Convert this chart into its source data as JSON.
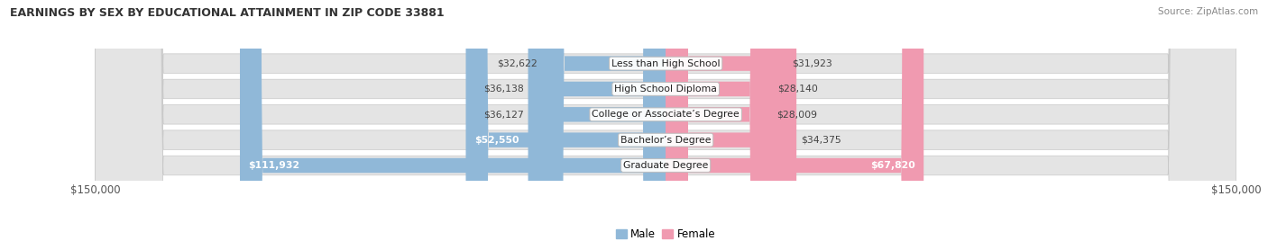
{
  "title": "EARNINGS BY SEX BY EDUCATIONAL ATTAINMENT IN ZIP CODE 33881",
  "source": "Source: ZipAtlas.com",
  "categories": [
    "Less than High School",
    "High School Diploma",
    "College or Associate’s Degree",
    "Bachelor’s Degree",
    "Graduate Degree"
  ],
  "male_values": [
    32622,
    36138,
    36127,
    52550,
    111932
  ],
  "female_values": [
    31923,
    28140,
    28009,
    34375,
    67820
  ],
  "male_color": "#90b8d8",
  "female_color": "#f09ab0",
  "max_value": 150000,
  "axis_label_left": "$150,000",
  "axis_label_right": "$150,000",
  "legend_male": "Male",
  "legend_female": "Female",
  "bg_color": "#ffffff",
  "row_bg_color": "#e8e8e8",
  "inside_label_threshold": 50000,
  "title_fontsize": 9.0,
  "source_fontsize": 7.5,
  "bar_label_fontsize": 7.8,
  "cat_label_fontsize": 7.8
}
